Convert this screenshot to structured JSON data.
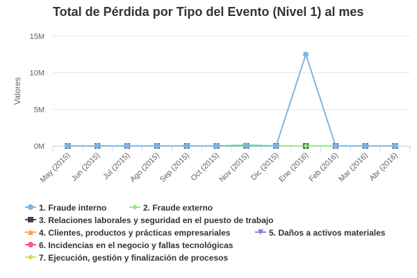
{
  "chart_data": {
    "type": "line",
    "title": "Total de Pérdida por Tipo del Evento (Nivel 1) al mes",
    "xlabel": "",
    "ylabel": "Valores",
    "ylim": [
      0,
      15000000
    ],
    "yticks": [
      0,
      5000000,
      10000000,
      15000000
    ],
    "ytick_labels": [
      "0M",
      "5M",
      "10M",
      "15M"
    ],
    "grid": true,
    "legend_position": "bottom",
    "categories": [
      "May (2015)",
      "Jun (2015)",
      "Jul (2015)",
      "Ago (2015)",
      "Sep (2015)",
      "Oct (2015)",
      "Nov (2015)",
      "Dic (2015)",
      "Ene (2016)",
      "Feb (2016)",
      "Mar (2016)",
      "Abr (2016)"
    ],
    "series": [
      {
        "name": "1. Fraude interno",
        "color": "#7cb5ec",
        "marker": "circle",
        "values": [
          0,
          0,
          0,
          0,
          0,
          0,
          0,
          0,
          12500000,
          0,
          0,
          0
        ]
      },
      {
        "name": "2. Fraude externo",
        "color": "#90ed7d",
        "marker": "diamond",
        "values": [
          0,
          0,
          0,
          0,
          0,
          0,
          150000,
          0,
          0,
          0,
          0,
          0
        ]
      },
      {
        "name": "3. Relaciones laborales y seguridad en el puesto de trabajo",
        "color": "#434348",
        "marker": "square",
        "values": [
          0,
          0,
          0,
          0,
          0,
          0,
          0,
          0,
          0,
          0,
          0,
          0
        ]
      },
      {
        "name": "4. Clientes, productos y prácticas empresariales",
        "color": "#f7a35c",
        "marker": "triangle",
        "values": [
          0,
          0,
          0,
          0,
          0,
          0,
          0,
          0,
          0,
          0,
          0,
          0
        ]
      },
      {
        "name": "5. Daños a activos materiales",
        "color": "#8085e9",
        "marker": "triangle-down",
        "values": [
          0,
          0,
          0,
          0,
          0,
          0,
          0,
          0,
          0,
          0,
          0,
          0
        ]
      },
      {
        "name": "6. Incidencias en el negocio y fallas tecnológicas",
        "color": "#f15c80",
        "marker": "circle",
        "values": [
          0,
          0,
          0,
          0,
          0,
          0,
          0,
          0,
          0,
          0,
          0,
          0
        ]
      },
      {
        "name": "7. Ejecución, gestión y finalización de procesos",
        "color": "#e4d354",
        "marker": "diamond",
        "values": [
          0,
          0,
          0,
          0,
          0,
          0,
          0,
          0,
          0,
          0,
          0,
          0
        ]
      }
    ]
  }
}
